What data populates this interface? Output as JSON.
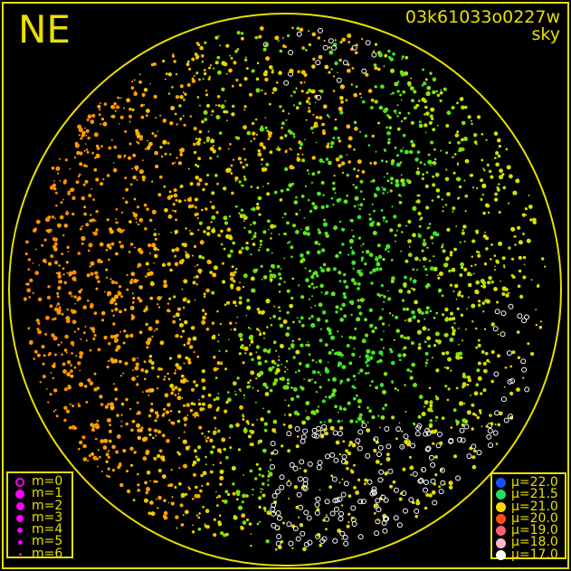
{
  "header": {
    "corner_label": "NE",
    "image_id": "03k61033o0227w",
    "subtitle": "sky"
  },
  "colors": {
    "frame": "#e8e000",
    "circle": "#e8e000",
    "legend_marker": "#ff00ff"
  },
  "chart_data": {
    "type": "scatter",
    "title": "",
    "size_legend": [
      {
        "label": "m=0",
        "marker": "ring"
      },
      {
        "label": "m=1",
        "marker": "dot"
      },
      {
        "label": "m=2",
        "marker": "dot"
      },
      {
        "label": "m=3",
        "marker": "dot"
      },
      {
        "label": "m=4",
        "marker": "dot"
      },
      {
        "label": "m=5",
        "marker": "dot"
      },
      {
        "label": "m=6",
        "marker": "dot"
      }
    ],
    "color_legend": [
      {
        "label": "μ=22.0",
        "color": "#1a4dff"
      },
      {
        "label": "μ=21.5",
        "color": "#22e060"
      },
      {
        "label": "μ=21.0",
        "color": "#ffd800"
      },
      {
        "label": "μ=20.0",
        "color": "#ff5010"
      },
      {
        "label": "μ=19.0",
        "color": "#ff6070"
      },
      {
        "label": "μ=18.0",
        "color": "#ffb8c8"
      },
      {
        "label": "μ=17.0",
        "color": "#ffffff"
      }
    ],
    "legend_placement": [
      "bottom-left",
      "bottom-right"
    ]
  }
}
